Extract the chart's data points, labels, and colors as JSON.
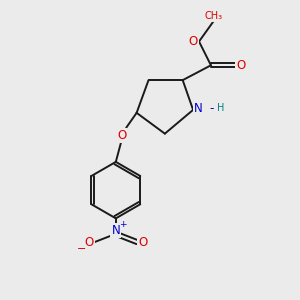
{
  "bg_color": "#ebebeb",
  "bond_color": "#1a1a1a",
  "bond_width": 1.4,
  "atom_colors": {
    "O": "#dd0000",
    "N": "#0000cc",
    "H": "#008080",
    "C": "#1a1a1a"
  },
  "font_size_atom": 8.5,
  "font_size_small": 7.0,
  "font_size_charge": 6.5
}
